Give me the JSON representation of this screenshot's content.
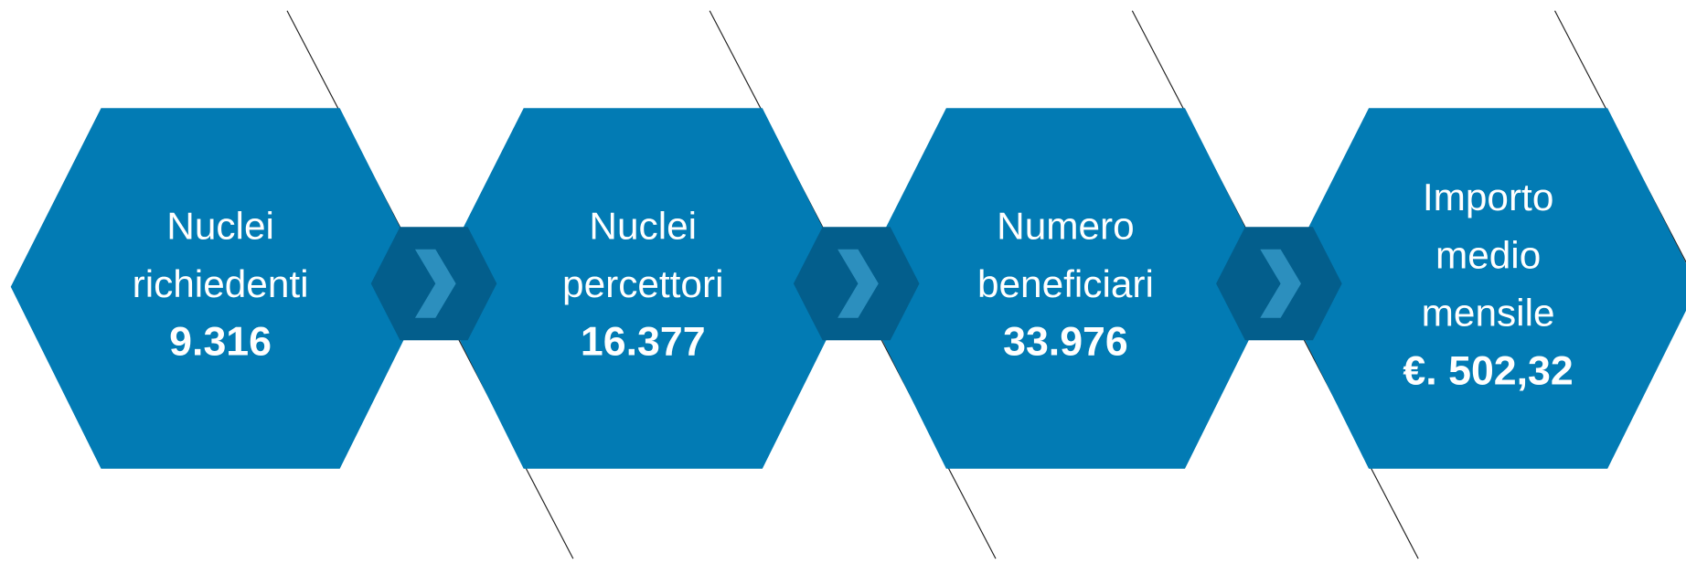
{
  "steps": [
    {
      "label": [
        "Nuclei",
        "richiedenti"
      ],
      "value": "9.316"
    },
    {
      "label": [
        "Nuclei",
        "percettori"
      ],
      "value": "16.377"
    },
    {
      "label": [
        "Numero",
        "beneficiari"
      ],
      "value": "33.976"
    },
    {
      "label": [
        "Importo",
        "medio",
        "mensile"
      ],
      "value": "€. 502,32"
    }
  ]
}
